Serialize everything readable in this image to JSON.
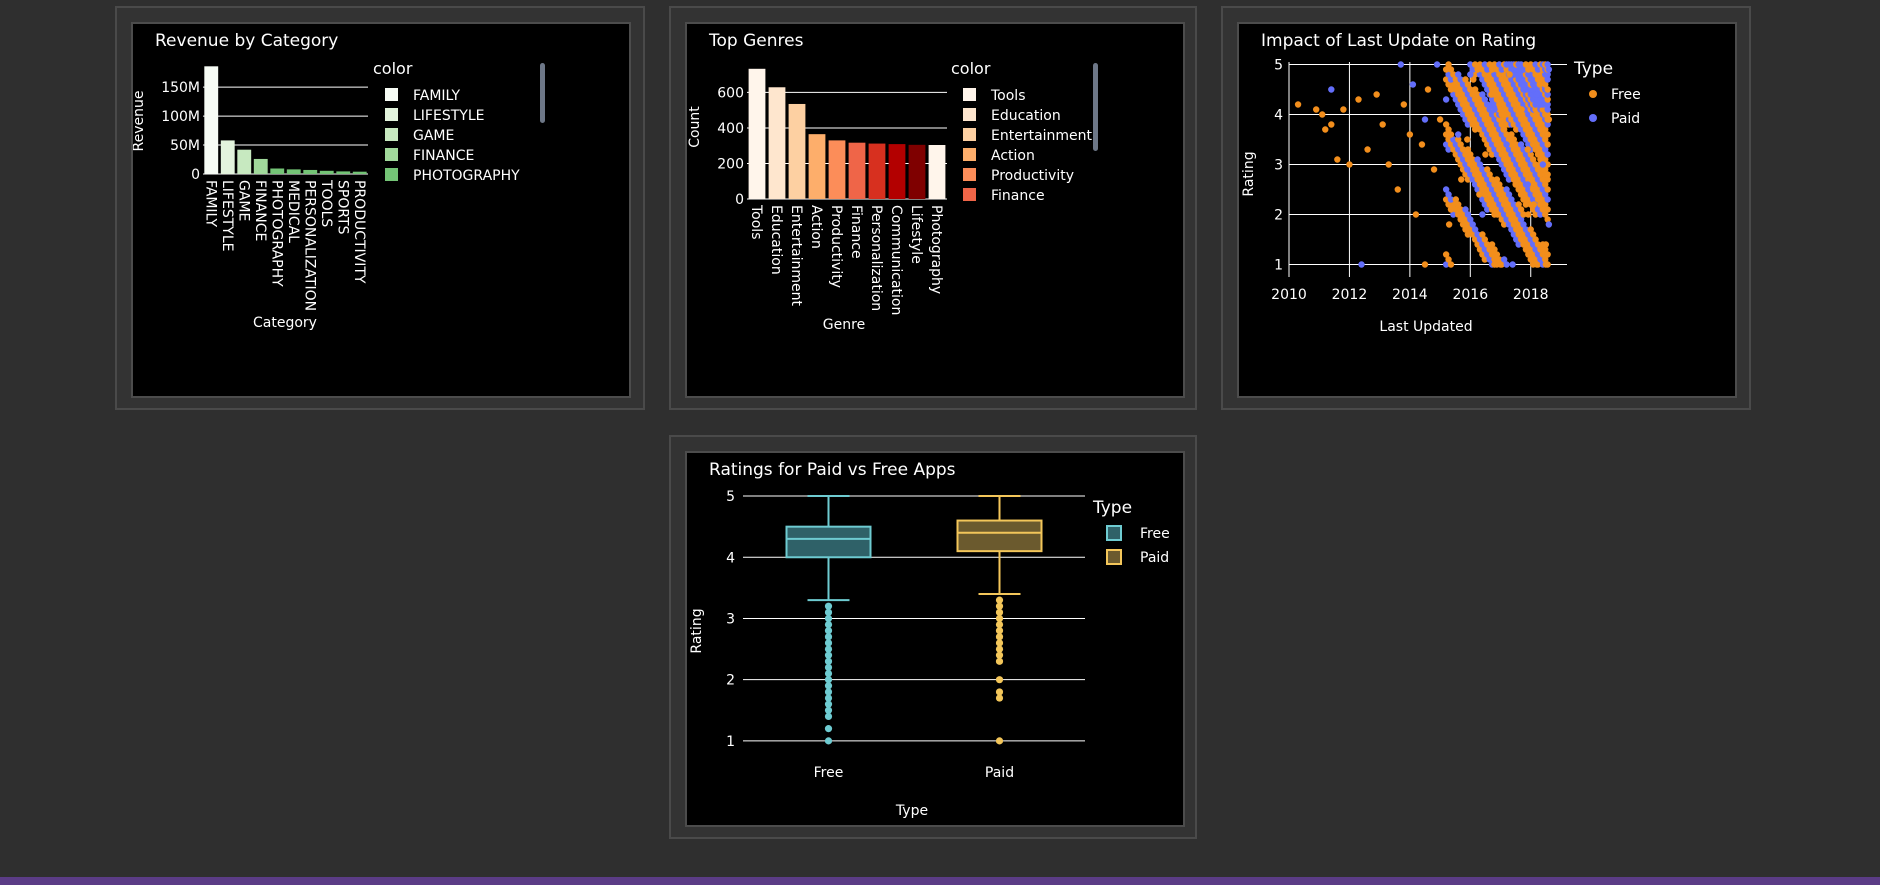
{
  "dashboard": {
    "charts": [
      {
        "id": "revenue",
        "type": "bar",
        "title": "Revenue by Category",
        "xlabel": "Category",
        "ylabel": "Revenue",
        "ylim": [
          0,
          190000000
        ],
        "yticks": [
          {
            "value": 0,
            "label": "0"
          },
          {
            "value": 50000000,
            "label": "50M"
          },
          {
            "value": 100000000,
            "label": "100M"
          },
          {
            "value": 150000000,
            "label": "150M"
          }
        ],
        "grid": true,
        "legend_title": "color",
        "legend_position": "right",
        "categories": [
          "FAMILY",
          "LIFESTYLE",
          "GAME",
          "FINANCE",
          "PHOTOGRAPHY",
          "MEDICAL",
          "PERSONALIZATION",
          "TOOLS",
          "SPORTS",
          "PRODUCTIVITY"
        ],
        "values": [
          186000000,
          58000000,
          42000000,
          26000000,
          9500000,
          8000000,
          7000000,
          5500000,
          4500000,
          4000000
        ],
        "colors": [
          "#f7fcf5",
          "#e3f4dd",
          "#c7e9c0",
          "#a1d99b",
          "#74c476",
          "#74c476",
          "#74c476",
          "#74c476",
          "#74c476",
          "#74c476"
        ],
        "legend_items": [
          {
            "label": "FAMILY",
            "color": "#f7fcf5"
          },
          {
            "label": "LIFESTYLE",
            "color": "#e3f4dd"
          },
          {
            "label": "GAME",
            "color": "#c7e9c0"
          },
          {
            "label": "FINANCE",
            "color": "#a1d99b"
          },
          {
            "label": "PHOTOGRAPHY",
            "color": "#74c476"
          }
        ]
      },
      {
        "id": "genres",
        "type": "bar",
        "title": "Top Genres",
        "xlabel": "Genre",
        "ylabel": "Count",
        "ylim": [
          0,
          760
        ],
        "yticks": [
          {
            "value": 0,
            "label": "0"
          },
          {
            "value": 200,
            "label": "200"
          },
          {
            "value": 400,
            "label": "400"
          },
          {
            "value": 600,
            "label": "600"
          }
        ],
        "grid": true,
        "legend_title": "color",
        "legend_position": "right",
        "categories": [
          "Tools",
          "Education",
          "Entertainment",
          "Action",
          "Productivity",
          "Finance",
          "Personalization",
          "Communication",
          "Lifestyle",
          "Photography"
        ],
        "values": [
          733,
          629,
          535,
          365,
          330,
          317,
          312,
          309,
          305,
          304
        ],
        "colors": [
          "#fff5eb",
          "#fee6ce",
          "#fdd0a2",
          "#fdae6b",
          "#fc8d59",
          "#ef6548",
          "#d7301f",
          "#b30000",
          "#7f0000",
          "#fff5eb"
        ],
        "legend_items": [
          {
            "label": "Tools",
            "color": "#fff5eb"
          },
          {
            "label": "Education",
            "color": "#fee6ce"
          },
          {
            "label": "Entertainment",
            "color": "#fdd0a2"
          },
          {
            "label": "Action",
            "color": "#fdae6b"
          },
          {
            "label": "Productivity",
            "color": "#fc8d59"
          },
          {
            "label": "Finance",
            "color": "#ef6548"
          }
        ]
      },
      {
        "id": "update",
        "type": "scatter",
        "title": "Impact of Last Update on Rating",
        "xlabel": "Last Updated",
        "ylabel": "Rating",
        "xlim": [
          2010,
          2019.2
        ],
        "ylim": [
          0.75,
          5.05
        ],
        "xticks": [
          {
            "value": 2010,
            "label": "2010"
          },
          {
            "value": 2012,
            "label": "2012"
          },
          {
            "value": 2014,
            "label": "2014"
          },
          {
            "value": 2016,
            "label": "2016"
          },
          {
            "value": 2018,
            "label": "2018"
          }
        ],
        "yticks": [
          {
            "value": 1,
            "label": "1"
          },
          {
            "value": 2,
            "label": "2"
          },
          {
            "value": 3,
            "label": "3"
          },
          {
            "value": 4,
            "label": "4"
          },
          {
            "value": 5,
            "label": "5"
          }
        ],
        "grid": true,
        "legend_title": "Type",
        "legend_position": "right",
        "series": [
          {
            "name": "Free",
            "color": "#f28e1c",
            "points": [
              [
                2010.3,
                4.2
              ],
              [
                2010.9,
                4.1
              ],
              [
                2011.1,
                4.0
              ],
              [
                2011.2,
                3.7
              ],
              [
                2011.4,
                3.8
              ],
              [
                2011.6,
                3.1
              ],
              [
                2011.8,
                4.1
              ],
              [
                2012.0,
                3.0
              ],
              [
                2012.3,
                4.3
              ],
              [
                2012.6,
                3.3
              ],
              [
                2012.9,
                4.4
              ],
              [
                2013.1,
                3.8
              ],
              [
                2013.3,
                3.0
              ],
              [
                2013.6,
                2.5
              ],
              [
                2013.8,
                4.2
              ],
              [
                2014.0,
                3.6
              ],
              [
                2014.2,
                2.0
              ],
              [
                2014.4,
                3.4
              ],
              [
                2014.6,
                4.5
              ],
              [
                2014.8,
                2.9
              ],
              [
                2015.0,
                3.9
              ],
              [
                2015.3,
                1.8
              ],
              [
                2015.5,
                4.6
              ],
              [
                2015.7,
                2.7
              ],
              [
                2015.9,
                3.5
              ],
              [
                2016.1,
                4.7
              ],
              [
                2016.3,
                2.4
              ],
              [
                2016.5,
                3.2
              ],
              [
                2016.7,
                4.4
              ],
              [
                2016.9,
                2.0
              ],
              [
                2017.1,
                3.7
              ],
              [
                2017.3,
                4.8
              ],
              [
                2017.5,
                2.6
              ],
              [
                2017.7,
                4.1
              ],
              [
                2017.9,
                3.3
              ],
              [
                2018.1,
                2.2
              ],
              [
                2018.3,
                4.6
              ],
              [
                2018.5,
                1.4
              ],
              [
                2018.6,
                3.9
              ],
              [
                2017.0,
                1.0
              ],
              [
                2014.5,
                1.0
              ],
              [
                2018.2,
                1.0
              ],
              [
                2016.8,
                1.0
              ],
              [
                2018.5,
                1.0
              ]
            ]
          },
          {
            "name": "Paid",
            "color": "#636efa",
            "points": [
              [
                2011.4,
                4.5
              ],
              [
                2012.4,
                1.0
              ],
              [
                2013.7,
                5.0
              ],
              [
                2014.1,
                4.6
              ],
              [
                2014.5,
                3.9
              ],
              [
                2014.9,
                5.0
              ],
              [
                2015.2,
                4.3
              ],
              [
                2015.6,
                3.6
              ],
              [
                2016.0,
                4.8
              ],
              [
                2016.4,
                2.0
              ],
              [
                2016.8,
                4.1
              ],
              [
                2017.2,
                3.4
              ],
              [
                2017.6,
                5.0
              ],
              [
                2017.9,
                2.6
              ],
              [
                2018.2,
                4.4
              ],
              [
                2018.4,
                3.0
              ],
              [
                2018.6,
                1.8
              ],
              [
                2017.4,
                1.0
              ],
              [
                2018.6,
                4.9
              ],
              [
                2015.9,
                2.9
              ]
            ]
          }
        ]
      },
      {
        "id": "boxes",
        "type": "box",
        "title": "Ratings for Paid vs Free Apps",
        "xlabel": "Type",
        "ylabel": "Rating",
        "ylim": [
          0.9,
          5.05
        ],
        "yticks": [
          {
            "value": 1,
            "label": "1"
          },
          {
            "value": 2,
            "label": "2"
          },
          {
            "value": 3,
            "label": "3"
          },
          {
            "value": 4,
            "label": "4"
          },
          {
            "value": 5,
            "label": "5"
          }
        ],
        "grid": true,
        "legend_title": "Type",
        "legend_position": "right",
        "categories": [
          "Free",
          "Paid"
        ],
        "series": [
          {
            "name": "Free",
            "color": "#6ecbd1",
            "fill": "#2f6168",
            "min": 3.3,
            "q1": 4.0,
            "median": 4.3,
            "q3": 4.5,
            "max": 5.0,
            "outliers": [
              3.2,
              3.1,
              3.0,
              2.9,
              2.8,
              2.7,
              2.6,
              2.5,
              2.4,
              2.3,
              2.2,
              2.1,
              2.0,
              1.9,
              1.8,
              1.7,
              1.6,
              1.5,
              1.4,
              1.2,
              1.0
            ]
          },
          {
            "name": "Paid",
            "color": "#f3c65a",
            "fill": "#6b5a2e",
            "min": 3.4,
            "q1": 4.1,
            "median": 4.4,
            "q3": 4.6,
            "max": 5.0,
            "outliers": [
              3.3,
              3.2,
              3.1,
              3.0,
              2.9,
              2.8,
              2.7,
              2.6,
              2.5,
              2.4,
              2.3,
              2.0,
              1.8,
              1.7,
              1.0
            ]
          }
        ]
      }
    ]
  }
}
